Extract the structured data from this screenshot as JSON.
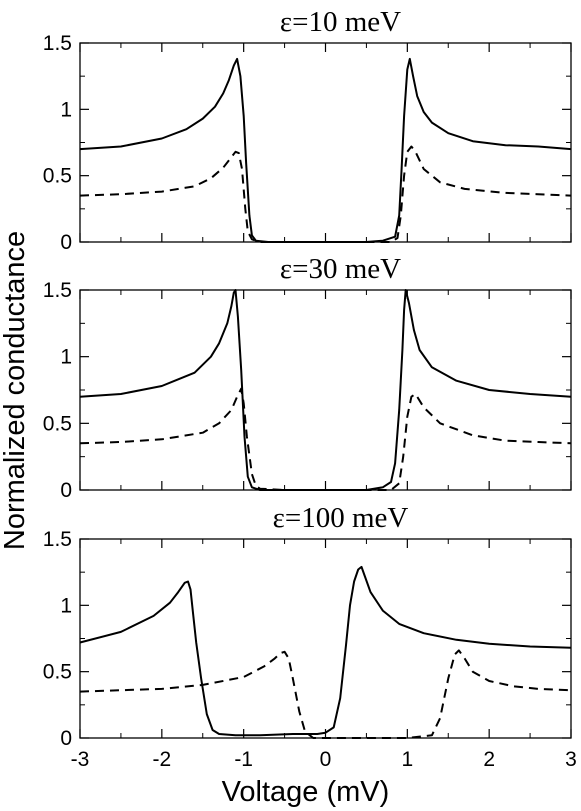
{
  "chart_data": {
    "type": "line",
    "xlabel": "Voltage (mV)",
    "ylabel": "Normalized conductance",
    "xlim": [
      -3,
      3
    ],
    "x_ticks": [
      "-3",
      "-2",
      "-1",
      "0",
      "1",
      "2",
      "3"
    ],
    "y_ticks": [
      "0",
      "0.5",
      "1",
      "1.5"
    ],
    "ylim": [
      0,
      1.5
    ],
    "grid": false,
    "panels": [
      {
        "title": "ε=10 meV",
        "series": [
          {
            "style": "solid",
            "x": [
              -3,
              -2.5,
              -2,
              -1.7,
              -1.5,
              -1.35,
              -1.25,
              -1.18,
              -1.12,
              -1.08,
              -1.04,
              -1.0,
              -0.97,
              -0.93,
              -0.9,
              -0.85,
              -0.7,
              -0.5,
              0,
              0.5,
              0.7,
              0.85,
              0.9,
              0.93,
              0.96,
              1.0,
              1.03,
              1.07,
              1.12,
              1.2,
              1.3,
              1.5,
              1.8,
              2.2,
              2.6,
              3
            ],
            "y": [
              0.7,
              0.72,
              0.78,
              0.85,
              0.93,
              1.02,
              1.12,
              1.22,
              1.33,
              1.38,
              1.25,
              0.95,
              0.6,
              0.2,
              0.05,
              0.01,
              0,
              0,
              0,
              0,
              0.01,
              0.04,
              0.2,
              0.55,
              0.95,
              1.3,
              1.38,
              1.25,
              1.1,
              0.98,
              0.9,
              0.82,
              0.76,
              0.73,
              0.72,
              0.7
            ]
          },
          {
            "style": "dashed",
            "x": [
              -3,
              -2.5,
              -2,
              -1.6,
              -1.4,
              -1.25,
              -1.15,
              -1.1,
              -1.06,
              -1.02,
              -0.98,
              -0.95,
              -0.9,
              -0.8,
              -0.5,
              0,
              0.5,
              0.8,
              0.88,
              0.92,
              0.96,
              1.0,
              1.05,
              1.1,
              1.2,
              1.4,
              1.7,
              2.2,
              2.6,
              3
            ],
            "y": [
              0.35,
              0.36,
              0.38,
              0.42,
              0.48,
              0.56,
              0.64,
              0.68,
              0.67,
              0.55,
              0.25,
              0.08,
              0.02,
              0,
              0,
              0,
              0,
              0,
              0.03,
              0.2,
              0.5,
              0.68,
              0.72,
              0.68,
              0.55,
              0.45,
              0.4,
              0.37,
              0.36,
              0.35
            ]
          }
        ]
      },
      {
        "title": "ε=30 meV",
        "series": [
          {
            "style": "solid",
            "x": [
              -3,
              -2.5,
              -2,
              -1.6,
              -1.4,
              -1.3,
              -1.2,
              -1.15,
              -1.12,
              -1.1,
              -1.07,
              -1.03,
              -0.99,
              -0.95,
              -0.9,
              -0.8,
              -0.5,
              0,
              0.5,
              0.7,
              0.8,
              0.85,
              0.9,
              0.94,
              0.96,
              0.98,
              1.02,
              1.08,
              1.15,
              1.3,
              1.6,
              2.0,
              2.5,
              3
            ],
            "y": [
              0.7,
              0.72,
              0.78,
              0.88,
              1.0,
              1.1,
              1.25,
              1.38,
              1.48,
              1.5,
              1.3,
              0.9,
              0.4,
              0.1,
              0.02,
              0,
              0,
              0,
              0,
              0.02,
              0.06,
              0.2,
              0.6,
              1.05,
              1.35,
              1.5,
              1.4,
              1.2,
              1.05,
              0.92,
              0.82,
              0.75,
              0.72,
              0.7
            ]
          },
          {
            "style": "dashed",
            "x": [
              -3,
              -2.5,
              -2,
              -1.5,
              -1.3,
              -1.15,
              -1.08,
              -1.03,
              -1.0,
              -0.96,
              -0.9,
              -0.85,
              -0.8,
              -0.5,
              0,
              0.5,
              0.8,
              0.9,
              0.95,
              1.0,
              1.05,
              1.1,
              1.2,
              1.4,
              1.8,
              2.2,
              2.6,
              3
            ],
            "y": [
              0.35,
              0.36,
              0.38,
              0.43,
              0.5,
              0.6,
              0.7,
              0.76,
              0.65,
              0.4,
              0.12,
              0.03,
              0.01,
              0,
              0,
              0,
              0,
              0.05,
              0.25,
              0.55,
              0.7,
              0.72,
              0.62,
              0.5,
              0.41,
              0.37,
              0.36,
              0.35
            ]
          }
        ]
      },
      {
        "title": "ε=100 meV",
        "series": [
          {
            "style": "solid",
            "x": [
              -3,
              -2.5,
              -2.1,
              -1.9,
              -1.8,
              -1.72,
              -1.68,
              -1.65,
              -1.62,
              -1.58,
              -1.52,
              -1.45,
              -1.38,
              -1.3,
              -1.1,
              -0.8,
              -0.4,
              -0.1,
              0,
              0.1,
              0.18,
              0.25,
              0.3,
              0.35,
              0.4,
              0.44,
              0.48,
              0.55,
              0.7,
              0.9,
              1.2,
              1.6,
              2.0,
              2.5,
              3
            ],
            "y": [
              0.72,
              0.8,
              0.92,
              1.02,
              1.1,
              1.17,
              1.18,
              1.12,
              0.95,
              0.72,
              0.45,
              0.18,
              0.06,
              0.03,
              0.02,
              0.02,
              0.03,
              0.03,
              0.04,
              0.08,
              0.3,
              0.7,
              1.0,
              1.18,
              1.27,
              1.29,
              1.22,
              1.1,
              0.96,
              0.86,
              0.79,
              0.74,
              0.71,
              0.69,
              0.68
            ]
          },
          {
            "style": "dashed",
            "x": [
              -3,
              -2.5,
              -2,
              -1.5,
              -1.0,
              -0.75,
              -0.62,
              -0.55,
              -0.5,
              -0.45,
              -0.4,
              -0.32,
              -0.25,
              -0.15,
              0,
              0.5,
              1.0,
              1.3,
              1.4,
              1.5,
              1.58,
              1.63,
              1.7,
              1.8,
              2.0,
              2.3,
              2.6,
              3
            ],
            "y": [
              0.35,
              0.36,
              0.37,
              0.4,
              0.46,
              0.54,
              0.6,
              0.64,
              0.65,
              0.6,
              0.45,
              0.2,
              0.05,
              0,
              0,
              0,
              0,
              0.02,
              0.15,
              0.45,
              0.63,
              0.66,
              0.6,
              0.5,
              0.43,
              0.39,
              0.37,
              0.36
            ]
          }
        ]
      }
    ]
  }
}
